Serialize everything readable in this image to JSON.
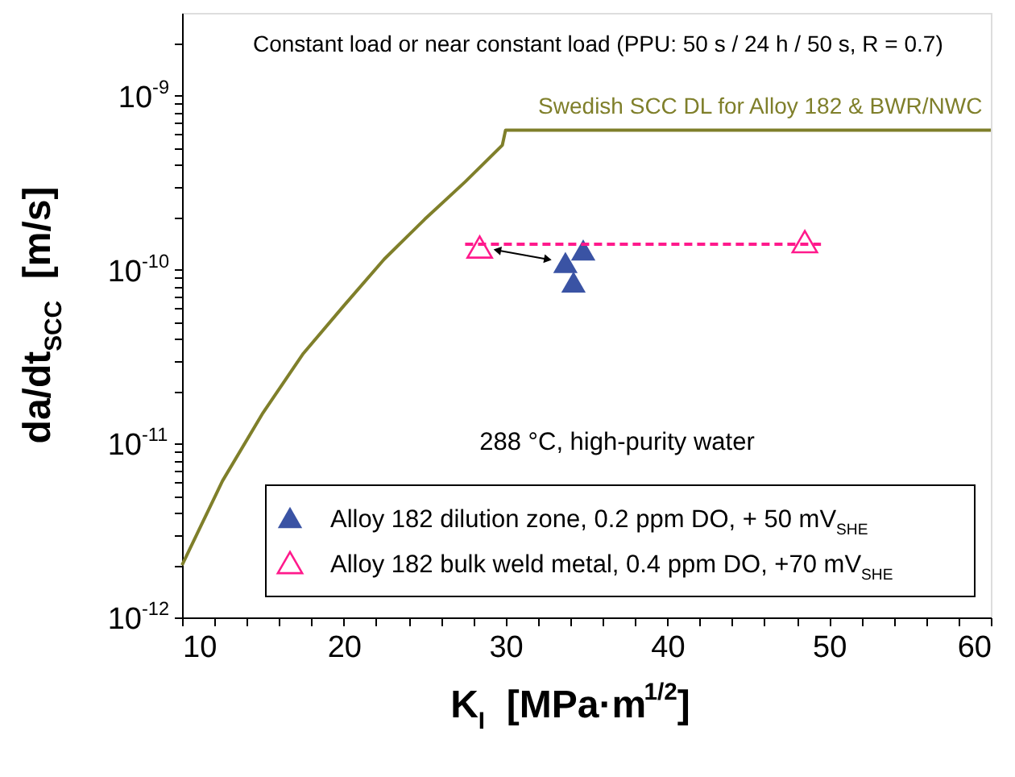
{
  "chart_data": {
    "type": "scatter",
    "xlabel": "K$_{I}$  [MPa·m$^{1/2}$]",
    "ylabel": "da/dt$_{SCC}$  [m/s]",
    "log": "y",
    "xlim": [
      10,
      60
    ],
    "xticks": [
      10,
      {
        "value": 12,
        "label": null
      },
      {
        "value": 14,
        "label": null
      },
      {
        "value": 16,
        "label": null
      },
      {
        "value": 18,
        "label": null
      },
      20,
      {
        "value": 22,
        "label": null
      },
      {
        "value": 24,
        "label": null
      },
      {
        "value": 26,
        "label": null
      },
      {
        "value": 28,
        "label": null
      },
      30,
      {
        "value": 32,
        "label": null
      },
      {
        "value": 34,
        "label": null
      },
      {
        "value": 36,
        "label": null
      },
      {
        "value": 38,
        "label": null
      },
      40,
      {
        "value": 42,
        "label": null
      },
      {
        "value": 44,
        "label": null
      },
      {
        "value": 46,
        "label": null
      },
      {
        "value": 48,
        "label": null
      },
      50,
      {
        "value": 52,
        "label": null
      },
      {
        "value": 54,
        "label": null
      },
      {
        "value": 56,
        "label": null
      },
      {
        "value": 58,
        "label": null
      },
      60
    ],
    "ylim": [
      1e-12,
      3e-09
    ],
    "yticks": [
      {
        "value": 1e-12,
        "label": "10$^{-12}$"
      },
      {
        "value": 2e-12,
        "label": null
      },
      {
        "value": 3e-12,
        "label": null
      },
      {
        "value": 4e-12,
        "label": null
      },
      {
        "value": 5e-12,
        "label": null
      },
      {
        "value": 6e-12,
        "label": null
      },
      {
        "value": 7e-12,
        "label": null
      },
      {
        "value": 8e-12,
        "label": null
      },
      {
        "value": 9e-12,
        "label": null
      },
      {
        "value": 1e-11,
        "label": "10$^{-11}$"
      },
      {
        "value": 2e-11,
        "label": null
      },
      {
        "value": 3e-11,
        "label": null
      },
      {
        "value": 4e-11,
        "label": null
      },
      {
        "value": 5e-11,
        "label": null
      },
      {
        "value": 6e-11,
        "label": null
      },
      {
        "value": 7e-11,
        "label": null
      },
      {
        "value": 8e-11,
        "label": null
      },
      {
        "value": 9e-11,
        "label": null
      },
      {
        "value": 1e-10,
        "label": "10$^{-10}$"
      },
      {
        "value": 2e-10,
        "label": null
      },
      {
        "value": 3e-10,
        "label": null
      },
      {
        "value": 4e-10,
        "label": null
      },
      {
        "value": 5e-10,
        "label": null
      },
      {
        "value": 6e-10,
        "label": null
      },
      {
        "value": 7e-10,
        "label": null
      },
      {
        "value": 8e-10,
        "label": null
      },
      {
        "value": 9e-10,
        "label": null
      },
      {
        "value": 1e-09,
        "label": "10$^{-9}$"
      },
      {
        "value": 2e-09,
        "label": null
      }
    ],
    "grid": false,
    "legend": "bottom right",
    "series": [
      {
        "name": "Swedish SCC DL for Alloy 182 & BWR/NWC",
        "type": "line",
        "color": "#7f7f2a",
        "marker": "none",
        "x": [
          10,
          12.5,
          15,
          17.5,
          20,
          22.5,
          25,
          27.5,
          29.8,
          30,
          60
        ],
        "values": [
          2e-12,
          6.1e-12,
          1.5e-11,
          3.3e-11,
          6.2e-11,
          1.15e-10,
          1.95e-10,
          3.2e-10,
          5.2e-10,
          6.35e-10,
          6.35e-10
        ]
      },
      {
        "name": "Alloy 182 dilution zone, 0.2 ppm DO, + 50 mV$_{SHE}$",
        "type": "scatter",
        "color": "#3a53a4",
        "marker": "triangle",
        "x": [
          33.7,
          34.8,
          34.2
        ],
        "values": [
          1.1e-10,
          1.3e-10,
          8.5e-11
        ]
      },
      {
        "name": "Alloy 182 bulk weld metal, 0.4 ppm DO, +70 mV$_{SHE}$",
        "type": "scatter",
        "color": "#ff1a8c",
        "marker": "triangle",
        "x": [
          28.4,
          48.5
        ],
        "values": [
          1.35e-10,
          1.45e-10
        ]
      },
      {
        "type": "line",
        "color": "#ff1a8c",
        "line_style": "dashed",
        "marker": "none",
        "x": [
          27.5,
          49.5
        ],
        "values": [
          1.4e-10,
          1.4e-10
        ]
      }
    ],
    "annotations": [
      "Constant load or near constant load (PPU: 50 s / 24 h / 50 s, R = 0.7)",
      "288 °C, high-purity water"
    ]
  }
}
